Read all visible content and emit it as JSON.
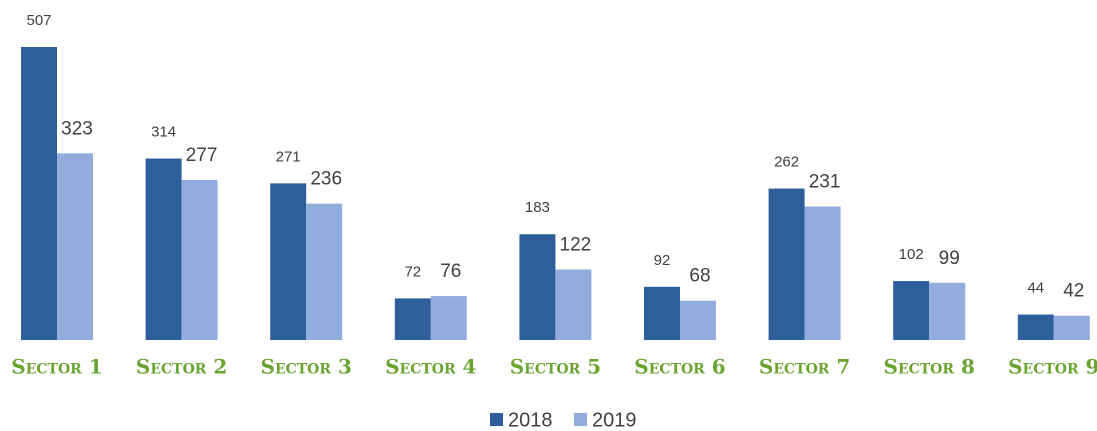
{
  "chart_data": {
    "type": "bar",
    "categories": [
      "Sector 1",
      "Sector 2",
      "Sector 3",
      "Sector 4",
      "Sector 5",
      "Sector 6",
      "Sector 7",
      "Sector 8",
      "Sector 9"
    ],
    "series": [
      {
        "name": "2018",
        "color": "#2e5f9b",
        "values": [
          507,
          314,
          271,
          72,
          183,
          92,
          262,
          102,
          44
        ]
      },
      {
        "name": "2019",
        "color": "#91acdd",
        "values": [
          323,
          277,
          236,
          76,
          122,
          68,
          231,
          99,
          42
        ]
      }
    ],
    "legend": "bottom"
  }
}
